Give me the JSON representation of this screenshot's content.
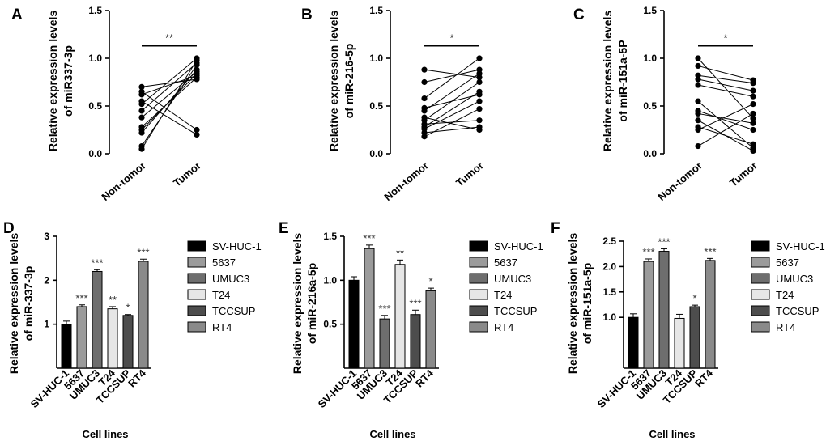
{
  "chart_data": [
    {
      "panel": "A",
      "type": "scatter",
      "subtype": "paired",
      "ylabel": "Relative expression levels of miR337-3p",
      "categories": [
        "Non-tomor",
        "Tumor"
      ],
      "ylim": [
        0,
        1.5
      ],
      "yticks": [
        "0.0",
        "0.5",
        "1.0",
        "1.5"
      ],
      "significance": "**",
      "pairs": [
        [
          0.05,
          0.98
        ],
        [
          0.08,
          0.93
        ],
        [
          0.22,
          0.88
        ],
        [
          0.25,
          0.84
        ],
        [
          0.28,
          0.8
        ],
        [
          0.38,
          0.86
        ],
        [
          0.45,
          0.95
        ],
        [
          0.52,
          1.0
        ],
        [
          0.55,
          0.2
        ],
        [
          0.62,
          0.82
        ],
        [
          0.65,
          0.25
        ],
        [
          0.7,
          0.78
        ]
      ]
    },
    {
      "panel": "B",
      "type": "scatter",
      "subtype": "paired",
      "ylabel": "Relative expression levels of miR-216-5p",
      "categories": [
        "Non-tomor",
        "Tumor"
      ],
      "ylim": [
        0,
        1.5
      ],
      "yticks": [
        "0.0",
        "0.5",
        "1.0",
        "1.5"
      ],
      "significance": "*",
      "pairs": [
        [
          0.18,
          0.47
        ],
        [
          0.22,
          0.28
        ],
        [
          0.26,
          0.55
        ],
        [
          0.28,
          0.65
        ],
        [
          0.31,
          0.35
        ],
        [
          0.35,
          0.75
        ],
        [
          0.38,
          0.25
        ],
        [
          0.45,
          0.84
        ],
        [
          0.48,
          0.62
        ],
        [
          0.58,
          1.0
        ],
        [
          0.75,
          0.88
        ],
        [
          0.88,
          0.8
        ]
      ]
    },
    {
      "panel": "C",
      "type": "scatter",
      "subtype": "paired",
      "ylabel": "Relative expression levels of miR-151a-5P",
      "categories": [
        "Non-tomor",
        "Tumor"
      ],
      "ylim": [
        0,
        1.5
      ],
      "yticks": [
        "0.0",
        "0.5",
        "1.0",
        "1.5"
      ],
      "significance": "*",
      "pairs": [
        [
          0.08,
          0.42
        ],
        [
          0.25,
          0.52
        ],
        [
          0.28,
          0.1
        ],
        [
          0.35,
          0.03
        ],
        [
          0.42,
          0.32
        ],
        [
          0.45,
          0.25
        ],
        [
          0.55,
          0.06
        ],
        [
          0.72,
          0.6
        ],
        [
          0.78,
          0.66
        ],
        [
          0.82,
          0.74
        ],
        [
          0.92,
          0.77
        ],
        [
          1.0,
          0.37
        ]
      ]
    },
    {
      "panel": "D",
      "type": "bar",
      "ylabel": "Relative expression levels of miR-337-3p",
      "xlabel": "Cell lines",
      "categories": [
        "SV-HUC-1",
        "5637",
        "UMUC3",
        "T24",
        "TCCSUP",
        "RT4"
      ],
      "values": [
        1.0,
        1.4,
        2.2,
        1.35,
        1.2,
        2.43
      ],
      "errors": [
        0.07,
        0.04,
        0.04,
        0.05,
        0.02,
        0.05
      ],
      "significance": [
        "",
        "***",
        "***",
        "**",
        "*",
        "***"
      ],
      "ylim": [
        0,
        3
      ],
      "yticks": [
        "1",
        "2",
        "3"
      ],
      "yticks_values": [
        1,
        2,
        3
      ]
    },
    {
      "panel": "E",
      "type": "bar",
      "ylabel": "Relative expression levels of miR-216a-5p",
      "xlabel": "Cell lines",
      "categories": [
        "SV-HUC-1",
        "5637",
        "UMUC3",
        "T24",
        "TCCSUP",
        "RT4"
      ],
      "values": [
        1.0,
        1.36,
        0.56,
        1.18,
        0.61,
        0.88
      ],
      "errors": [
        0.04,
        0.04,
        0.04,
        0.05,
        0.05,
        0.03
      ],
      "significance": [
        "",
        "***",
        "***",
        "**",
        "***",
        "*"
      ],
      "ylim": [
        0,
        1.5
      ],
      "yticks": [
        "0.5",
        "1.0",
        "1.5"
      ],
      "yticks_values": [
        0.5,
        1.0,
        1.5
      ]
    },
    {
      "panel": "F",
      "type": "bar",
      "ylabel": "Relative expression levels of miR-151a-5p",
      "xlabel": "Cell lines",
      "categories": [
        "SV-HUC-1",
        "5637",
        "UMUC3",
        "T24",
        "TCCSUP",
        "RT4"
      ],
      "values": [
        1.0,
        2.1,
        2.3,
        0.98,
        1.21,
        2.12
      ],
      "errors": [
        0.07,
        0.05,
        0.05,
        0.08,
        0.03,
        0.04
      ],
      "significance": [
        "",
        "***",
        "***",
        "",
        "*",
        "***"
      ],
      "ylim": [
        0,
        2.5
      ],
      "yticks": [
        "1.0",
        "1.5",
        "2.0",
        "2.5"
      ],
      "yticks_values": [
        1.0,
        1.5,
        2.0,
        2.5
      ]
    }
  ],
  "legend": {
    "entries": [
      "SV-HUC-1",
      "5637",
      "UMUC3",
      "T24",
      "TCCSUP",
      "RT4"
    ],
    "colors": [
      "#000000",
      "#9b9b9b",
      "#6e6e6e",
      "#e6e6e6",
      "#4d4d4d",
      "#8a8a8a"
    ]
  }
}
